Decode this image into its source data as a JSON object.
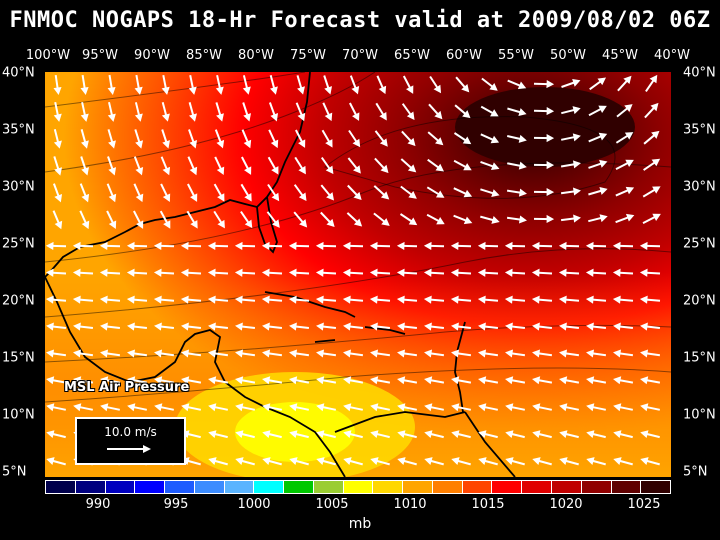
{
  "title": "FNMOC NOGAPS 18-Hr Forecast valid at 2009/08/02 06Z",
  "longitude_labels": [
    "100°W",
    "95°W",
    "90°W",
    "85°W",
    "80°W",
    "75°W",
    "70°W",
    "65°W",
    "60°W",
    "55°W",
    "50°W",
    "45°W",
    "40°W"
  ],
  "latitude_labels": [
    "40°N",
    "35°N",
    "30°N",
    "25°N",
    "20°N",
    "15°N",
    "10°N",
    "5°N"
  ],
  "field_label": "MSL Air Pressure",
  "scale_label": "10.0 m/s",
  "colorbar": {
    "colors": [
      "#00004c",
      "#00007f",
      "#0000bf",
      "#0000ff",
      "#1e5cff",
      "#3c8cff",
      "#5ab4ff",
      "#00ffff",
      "#00c800",
      "#9acd32",
      "#ffff00",
      "#ffd700",
      "#ffa500",
      "#ff7f00",
      "#ff4500",
      "#ff0000",
      "#e00000",
      "#c00000",
      "#900000",
      "#600000",
      "#300000"
    ],
    "ticks": [
      "990",
      "995",
      "1000",
      "1005",
      "1010",
      "1015",
      "1020",
      "1025"
    ],
    "units": "mb"
  },
  "map": {
    "lon_range": [
      -100,
      -40
    ],
    "lat_range": [
      5,
      40
    ],
    "variable": "MSL air pressure (mb)",
    "vector_variable": "wind (m/s)",
    "high_center": {
      "lon": -52,
      "lat": 34,
      "pressure_mb": 1025
    }
  }
}
